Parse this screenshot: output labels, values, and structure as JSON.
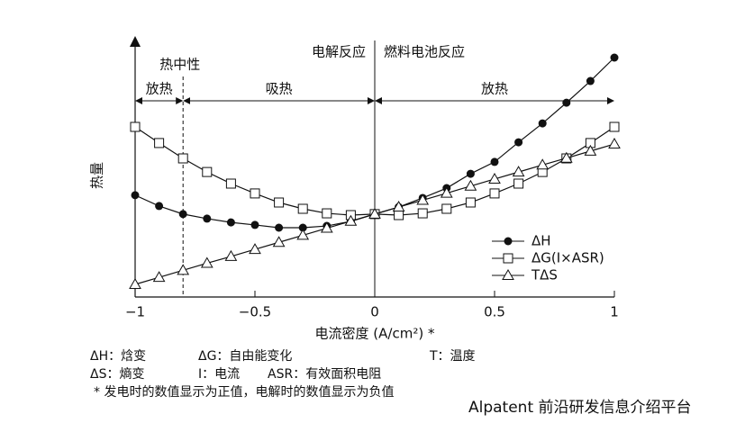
{
  "chart_data": {
    "type": "line",
    "x_label": "电流密度 (A/cm²) *",
    "y_label": "热量",
    "x": [
      -1,
      -0.9,
      -0.8,
      -0.7,
      -0.6,
      -0.5,
      -0.4,
      -0.3,
      -0.2,
      -0.1,
      0,
      0.1,
      0.2,
      0.3,
      0.4,
      0.5,
      0.6,
      0.7,
      0.8,
      0.9,
      1
    ],
    "series": [
      {
        "name": "ΔH",
        "color": "#111111",
        "marker": "circle",
        "values": [
          40.4,
          36.1,
          32.9,
          31.1,
          29.6,
          28.6,
          27.5,
          27.5,
          28.2,
          30.0,
          32.9,
          35.7,
          39.3,
          43.2,
          48.9,
          53.6,
          61.4,
          68.9,
          77.1,
          85.7,
          95.0
        ]
      },
      {
        "name": "ΔG(I×ASR)",
        "color": "#111111",
        "marker": "square",
        "values": [
          67.5,
          61.1,
          55.0,
          49.6,
          45.0,
          41.1,
          37.5,
          35.0,
          33.2,
          32.5,
          32.9,
          32.5,
          33.2,
          35.0,
          37.5,
          41.1,
          45.0,
          49.6,
          55.0,
          61.1,
          67.5
        ]
      },
      {
        "name": "TΔS",
        "color": "#111111",
        "marker": "triangle",
        "values": [
          5.0,
          7.8,
          10.6,
          13.4,
          16.1,
          18.9,
          21.7,
          24.5,
          27.3,
          30.1,
          32.9,
          35.7,
          38.4,
          41.2,
          44.0,
          46.8,
          49.6,
          52.4,
          55.1,
          57.9,
          60.7
        ]
      }
    ],
    "xlim": [
      -1,
      1
    ],
    "ylim": [
      0,
      100
    ],
    "xticks": [
      {
        "value": -1,
        "label": "−1"
      },
      {
        "value": -0.5,
        "label": "−0.5"
      },
      0,
      0.5,
      1
    ],
    "reference_lines": [
      {
        "x": -0.8,
        "style": "dashed",
        "label": "热中性"
      },
      {
        "x": 0,
        "style": "solid"
      }
    ],
    "side_labels": [
      "电解反应",
      "燃料电池反应"
    ],
    "regions": [
      {
        "label": "放热",
        "from": -1,
        "to": -0.8
      },
      {
        "label": "吸热",
        "from": -0.8,
        "to": 0
      },
      {
        "label": "放热",
        "from": 0,
        "to": 1
      }
    ],
    "legend": "lower right",
    "footnotes": [
      [
        "ΔH：焓变",
        "ΔG：自由能变化",
        "T：温度"
      ],
      [
        "ΔS：熵变",
        "I：电流",
        "ASR：有效面积电阻"
      ],
      [
        "* 发电时的数值显示为正值，电解时的数值显示为负值"
      ]
    ]
  },
  "watermark": "Alpatent 前沿研发信息介绍平台"
}
